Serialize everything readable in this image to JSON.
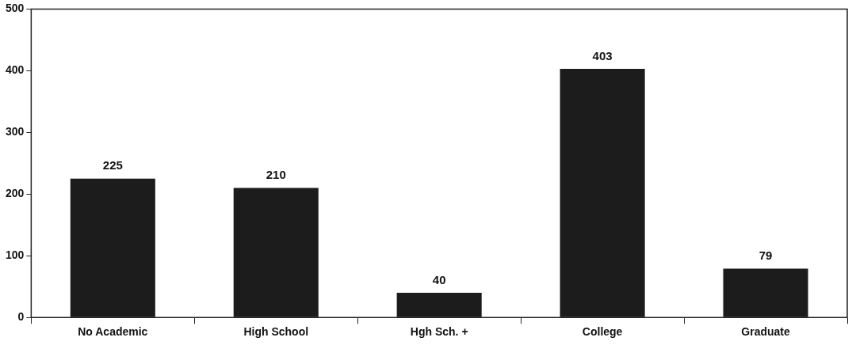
{
  "chart_data": {
    "type": "bar",
    "categories": [
      "No Academic",
      "High School",
      "Hgh Sch. +",
      "College",
      "Graduate"
    ],
    "values": [
      225,
      210,
      40,
      403,
      79
    ],
    "color": "#1c1c1c",
    "ylim": [
      0,
      500
    ],
    "yticks": [
      0,
      100,
      200,
      300,
      400,
      500
    ],
    "grid": false,
    "legend": false,
    "data_labels": true
  }
}
